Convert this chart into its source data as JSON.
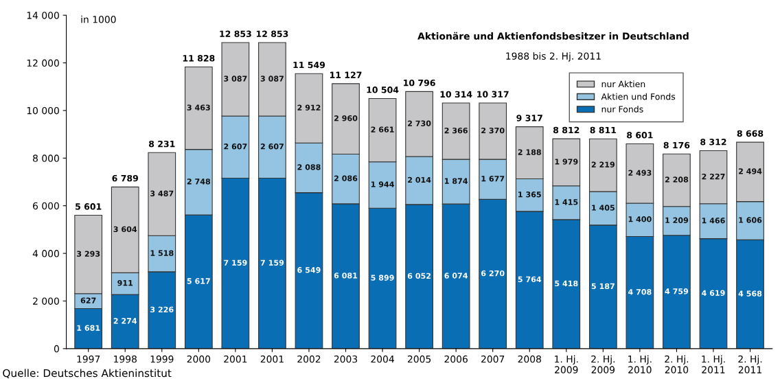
{
  "chart_data": {
    "type": "bar",
    "stacked": true,
    "title": "Aktionäre und Aktienfondsbesitzer in Deutschland",
    "subtitle": "1988 bis 2. Hj. 2011",
    "ylabel": "in 1000",
    "categories": [
      "1997",
      "1998",
      "1999",
      "2000",
      "2001",
      "2001",
      "2002",
      "2003",
      "2004",
      "2005",
      "2006",
      "2007",
      "2008",
      "1. Hj.\n2009",
      "2. Hj.\n2009",
      "1. Hj.\n2010",
      "2. Hj.\n2010",
      "1. Hj.\n2011",
      "2. Hj.\n2011"
    ],
    "series": [
      {
        "name": "nur Fonds",
        "color": "#0a6eb4",
        "values": [
          1681,
          2274,
          3226,
          5617,
          7159,
          7159,
          6549,
          6081,
          5899,
          6052,
          6074,
          6270,
          5764,
          5418,
          5187,
          4708,
          4759,
          4619,
          4568
        ],
        "value_labels": [
          "1 681",
          "2 274",
          "3 226",
          "5 617",
          "7 159",
          "7 159",
          "6 549",
          "6 081",
          "5 899",
          "6 052",
          "6 074",
          "6 270",
          "5 764",
          "5 418",
          "5 187",
          "4 708",
          "4 759",
          "4 619",
          "4 568"
        ]
      },
      {
        "name": "Aktien und Fonds",
        "color": "#94c4e2",
        "values": [
          627,
          911,
          1518,
          2748,
          2607,
          2607,
          2088,
          2086,
          1944,
          2014,
          1874,
          1677,
          1365,
          1415,
          1405,
          1400,
          1209,
          1466,
          1606
        ],
        "value_labels": [
          "627",
          "911",
          "1 518",
          "2 748",
          "2 607",
          "2 607",
          "2 088",
          "2 086",
          "1 944",
          "2 014",
          "1 874",
          "1 677",
          "1 365",
          "1 415",
          "1 405",
          "1 400",
          "1 209",
          "1 466",
          "1 606"
        ]
      },
      {
        "name": "nur Aktien",
        "color": "#c6c6c9",
        "values": [
          3293,
          3604,
          3487,
          3463,
          3087,
          3087,
          2912,
          2960,
          2661,
          2730,
          2366,
          2370,
          2188,
          1979,
          2219,
          2493,
          2208,
          2227,
          2494
        ],
        "value_labels": [
          "3 293",
          "3 604",
          "3 487",
          "3 463",
          "3 087",
          "3 087",
          "2 912",
          "2 960",
          "2 661",
          "2 730",
          "2 366",
          "2 370",
          "2 188",
          "1 979",
          "2 219",
          "2 493",
          "2 208",
          "2 227",
          "2 494"
        ]
      }
    ],
    "totals": [
      "5 601",
      "6 789",
      "8 231",
      "11 828",
      "12 853",
      "12 853",
      "11 549",
      "11 127",
      "10 504",
      "10 796",
      "10 314",
      "10 317",
      "9 317",
      "8 812",
      "8 811",
      "8 601",
      "8 176",
      "8 312",
      "8 668"
    ],
    "ylim": [
      0,
      14000
    ],
    "yticks": [
      {
        "value": 0,
        "label": "0"
      },
      {
        "value": 2000,
        "label": "2 000"
      },
      {
        "value": 4000,
        "label": "4 000"
      },
      {
        "value": 6000,
        "label": "6 000"
      },
      {
        "value": 8000,
        "label": "8 000"
      },
      {
        "value": 10000,
        "label": "10 000"
      },
      {
        "value": 12000,
        "label": "12 000"
      },
      {
        "value": 14000,
        "label": "14 000"
      }
    ],
    "legend": "top right",
    "grid": false,
    "annotations": [
      "Quelle: Deutsches Aktieninstitut"
    ]
  }
}
